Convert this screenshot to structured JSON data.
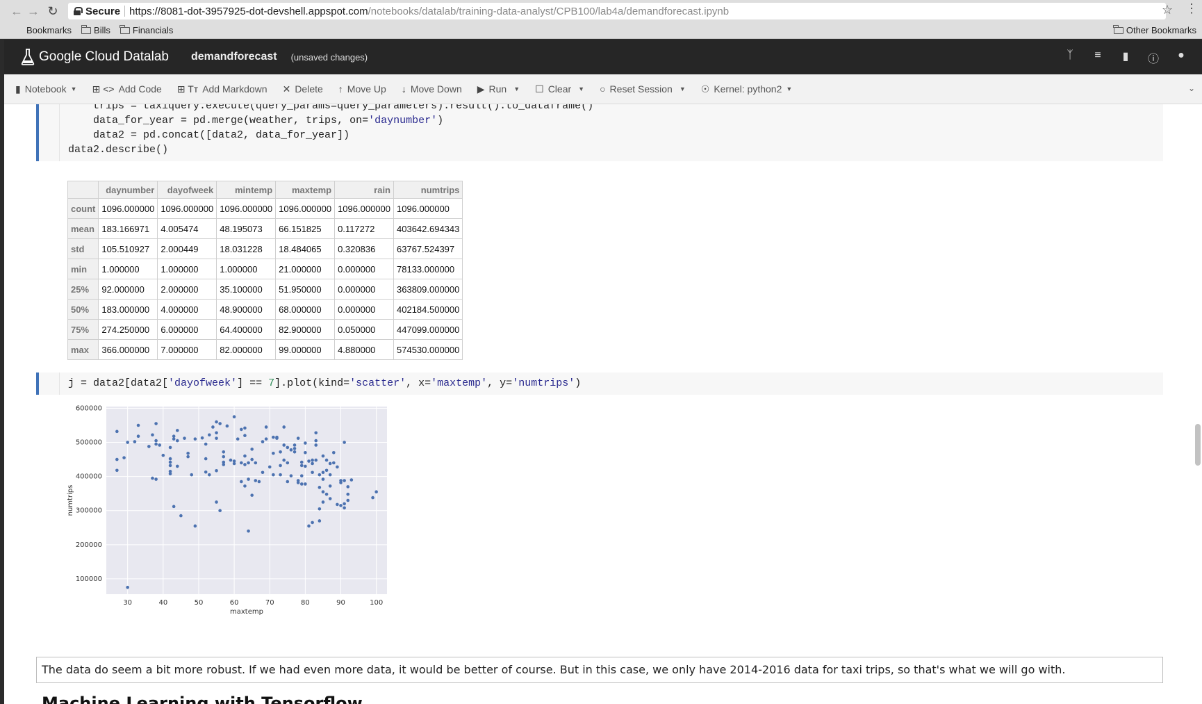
{
  "browser": {
    "secure_label": "Secure",
    "url_host": "https://8081-dot-3957925-dot-devshell.appspot.com",
    "url_path": "/notebooks/datalab/training-data-analyst/CPB100/lab4a/demandforecast.ipynb",
    "bookmarks": [
      "Bookmarks",
      "Bills",
      "Financials"
    ],
    "other_bookmarks": "Other Bookmarks"
  },
  "header": {
    "brand": "Google Cloud Datalab",
    "notebook_title": "demandforecast",
    "unsaved": "(unsaved changes)"
  },
  "toolbar": {
    "notebook": "Notebook",
    "add_code": "Add Code",
    "add_markdown": "Add Markdown",
    "delete": "Delete",
    "move_up": "Move Up",
    "move_down": "Move Down",
    "run": "Run",
    "clear": "Clear",
    "reset_session": "Reset Session",
    "kernel": "Kernel: python2"
  },
  "cell1": {
    "line1": "    trips = taxiquery.execute(query_params=query_parameters).result().to_dataframe()",
    "line2a": "    data_for_year = pd.merge(weather, trips, on=",
    "line2s": "'daynumber'",
    "line2b": ")",
    "line3": "    data2 = pd.concat([data2, data_for_year])",
    "line4": "data2.describe()"
  },
  "table": {
    "columns": [
      "",
      "daynumber",
      "dayofweek",
      "mintemp",
      "maxtemp",
      "rain",
      "numtrips"
    ],
    "rows": [
      [
        "count",
        "1096.000000",
        "1096.000000",
        "1096.000000",
        "1096.000000",
        "1096.000000",
        "1096.000000"
      ],
      [
        "mean",
        "183.166971",
        "4.005474",
        "48.195073",
        "66.151825",
        "0.117272",
        "403642.694343"
      ],
      [
        "std",
        "105.510927",
        "2.000449",
        "18.031228",
        "18.484065",
        "0.320836",
        "63767.524397"
      ],
      [
        "min",
        "1.000000",
        "1.000000",
        "1.000000",
        "21.000000",
        "0.000000",
        "78133.000000"
      ],
      [
        "25%",
        "92.000000",
        "2.000000",
        "35.100000",
        "51.950000",
        "0.000000",
        "363809.000000"
      ],
      [
        "50%",
        "183.000000",
        "4.000000",
        "48.900000",
        "68.000000",
        "0.000000",
        "402184.500000"
      ],
      [
        "75%",
        "274.250000",
        "6.000000",
        "64.400000",
        "82.900000",
        "0.050000",
        "447099.000000"
      ],
      [
        "max",
        "366.000000",
        "7.000000",
        "82.000000",
        "99.000000",
        "4.880000",
        "574530.000000"
      ]
    ]
  },
  "cell2": {
    "p1": "j = data2[data2[",
    "s1": "'dayofweek'",
    "p2": "] == ",
    "n1": "7",
    "p3": "].plot(kind=",
    "s2": "'scatter'",
    "p4": ", x=",
    "s3": "'maxtemp'",
    "p5": ", y=",
    "s4": "'numtrips'",
    "p6": ")"
  },
  "chart_data": {
    "type": "scatter",
    "xlabel": "maxtemp",
    "ylabel": "numtrips",
    "xlim": [
      24,
      103
    ],
    "ylim": [
      55000,
      605000
    ],
    "xticks": [
      30,
      40,
      50,
      60,
      70,
      80,
      90,
      100
    ],
    "yticks": [
      100000,
      200000,
      300000,
      400000,
      500000,
      600000
    ],
    "grid": true,
    "points": [
      [
        27,
        532000
      ],
      [
        27,
        450000
      ],
      [
        27,
        418000
      ],
      [
        29,
        455000
      ],
      [
        30,
        500000
      ],
      [
        30,
        75000
      ],
      [
        32,
        502000
      ],
      [
        33,
        550000
      ],
      [
        33,
        518000
      ],
      [
        36,
        488000
      ],
      [
        37,
        522000
      ],
      [
        37,
        395000
      ],
      [
        38,
        392000
      ],
      [
        38,
        555000
      ],
      [
        38,
        505000
      ],
      [
        38,
        495000
      ],
      [
        39,
        492000
      ],
      [
        40,
        462000
      ],
      [
        42,
        485000
      ],
      [
        42,
        452000
      ],
      [
        42,
        442000
      ],
      [
        42,
        432000
      ],
      [
        42,
        415000
      ],
      [
        42,
        408000
      ],
      [
        43,
        518000
      ],
      [
        43,
        510000
      ],
      [
        43,
        312000
      ],
      [
        44,
        535000
      ],
      [
        44,
        505000
      ],
      [
        44,
        430000
      ],
      [
        45,
        285000
      ],
      [
        46,
        512000
      ],
      [
        47,
        468000
      ],
      [
        47,
        458000
      ],
      [
        48,
        405000
      ],
      [
        49,
        510000
      ],
      [
        49,
        255000
      ],
      [
        51,
        513000
      ],
      [
        52,
        495000
      ],
      [
        52,
        452000
      ],
      [
        52,
        413000
      ],
      [
        53,
        522000
      ],
      [
        53,
        405000
      ],
      [
        54,
        545000
      ],
      [
        55,
        560000
      ],
      [
        55,
        528000
      ],
      [
        55,
        512000
      ],
      [
        55,
        417000
      ],
      [
        55,
        325000
      ],
      [
        56,
        555000
      ],
      [
        56,
        300000
      ],
      [
        57,
        472000
      ],
      [
        57,
        458000
      ],
      [
        57,
        442000
      ],
      [
        57,
        435000
      ],
      [
        58,
        548000
      ],
      [
        59,
        448000
      ],
      [
        60,
        575000
      ],
      [
        60,
        445000
      ],
      [
        60,
        438000
      ],
      [
        61,
        510000
      ],
      [
        62,
        538000
      ],
      [
        62,
        440000
      ],
      [
        62,
        385000
      ],
      [
        63,
        542000
      ],
      [
        63,
        520000
      ],
      [
        63,
        460000
      ],
      [
        63,
        435000
      ],
      [
        63,
        372000
      ],
      [
        64,
        440000
      ],
      [
        64,
        392000
      ],
      [
        64,
        240000
      ],
      [
        65,
        480000
      ],
      [
        65,
        450000
      ],
      [
        65,
        345000
      ],
      [
        66,
        440000
      ],
      [
        66,
        388000
      ],
      [
        67,
        385000
      ],
      [
        68,
        412000
      ],
      [
        68,
        502000
      ],
      [
        69,
        545000
      ],
      [
        69,
        510000
      ],
      [
        70,
        428000
      ],
      [
        71,
        515000
      ],
      [
        71,
        468000
      ],
      [
        71,
        405000
      ],
      [
        72,
        515000
      ],
      [
        72,
        512000
      ],
      [
        73,
        472000
      ],
      [
        73,
        432000
      ],
      [
        73,
        405000
      ],
      [
        74,
        545000
      ],
      [
        74,
        492000
      ],
      [
        74,
        448000
      ],
      [
        75,
        485000
      ],
      [
        75,
        440000
      ],
      [
        75,
        385000
      ],
      [
        76,
        478000
      ],
      [
        76,
        402000
      ],
      [
        77,
        492000
      ],
      [
        77,
        482000
      ],
      [
        77,
        472000
      ],
      [
        78,
        512000
      ],
      [
        78,
        388000
      ],
      [
        78,
        382000
      ],
      [
        79,
        442000
      ],
      [
        79,
        432000
      ],
      [
        79,
        402000
      ],
      [
        79,
        378000
      ],
      [
        80,
        498000
      ],
      [
        80,
        470000
      ],
      [
        80,
        430000
      ],
      [
        80,
        378000
      ],
      [
        81,
        445000
      ],
      [
        81,
        255000
      ],
      [
        82,
        448000
      ],
      [
        82,
        438000
      ],
      [
        82,
        412000
      ],
      [
        82,
        265000
      ],
      [
        83,
        528000
      ],
      [
        83,
        505000
      ],
      [
        83,
        492000
      ],
      [
        83,
        448000
      ],
      [
        84,
        405000
      ],
      [
        84,
        368000
      ],
      [
        84,
        305000
      ],
      [
        84,
        270000
      ],
      [
        85,
        460000
      ],
      [
        85,
        412000
      ],
      [
        85,
        392000
      ],
      [
        85,
        355000
      ],
      [
        85,
        325000
      ],
      [
        86,
        448000
      ],
      [
        86,
        418000
      ],
      [
        86,
        348000
      ],
      [
        87,
        438000
      ],
      [
        87,
        405000
      ],
      [
        87,
        372000
      ],
      [
        87,
        335000
      ],
      [
        88,
        470000
      ],
      [
        88,
        440000
      ],
      [
        89,
        428000
      ],
      [
        89,
        318000
      ],
      [
        90,
        388000
      ],
      [
        90,
        382000
      ],
      [
        90,
        315000
      ],
      [
        91,
        388000
      ],
      [
        91,
        320000
      ],
      [
        91,
        308000
      ],
      [
        91,
        500000
      ],
      [
        92,
        370000
      ],
      [
        92,
        348000
      ],
      [
        92,
        330000
      ],
      [
        93,
        390000
      ],
      [
        99,
        338000
      ],
      [
        100,
        355000
      ]
    ]
  },
  "markdown": {
    "text": "The data do seem a bit more robust. If we had even more data, it would be better of course. But in this case, we only have 2014-2016 data for taxi trips, so that's what we will go with.",
    "heading": "Machine Learning with Tensorflow"
  }
}
